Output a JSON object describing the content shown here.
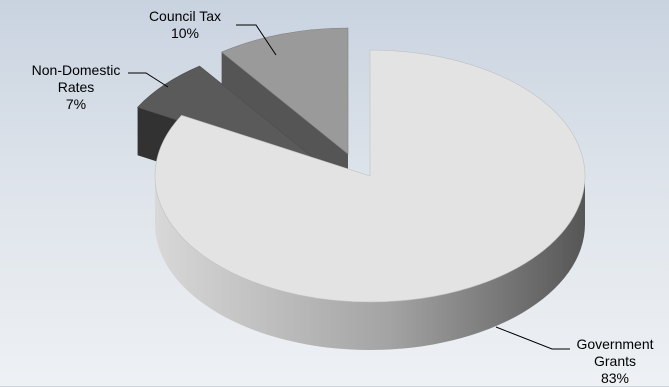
{
  "chart_data": {
    "type": "pie",
    "style": "3d-exploded",
    "slices": [
      {
        "label_lines": [
          "Government",
          "Grants"
        ],
        "percent_label": "83%",
        "value": 83,
        "color": "#e3e3e3"
      },
      {
        "label_lines": [
          "Non-Domestic",
          "Rates"
        ],
        "percent_label": "7%",
        "value": 7,
        "color": "#5a5a5a"
      },
      {
        "label_lines": [
          "Council Tax"
        ],
        "percent_label": "10%",
        "value": 10,
        "color": "#9a9a9a"
      }
    ]
  }
}
